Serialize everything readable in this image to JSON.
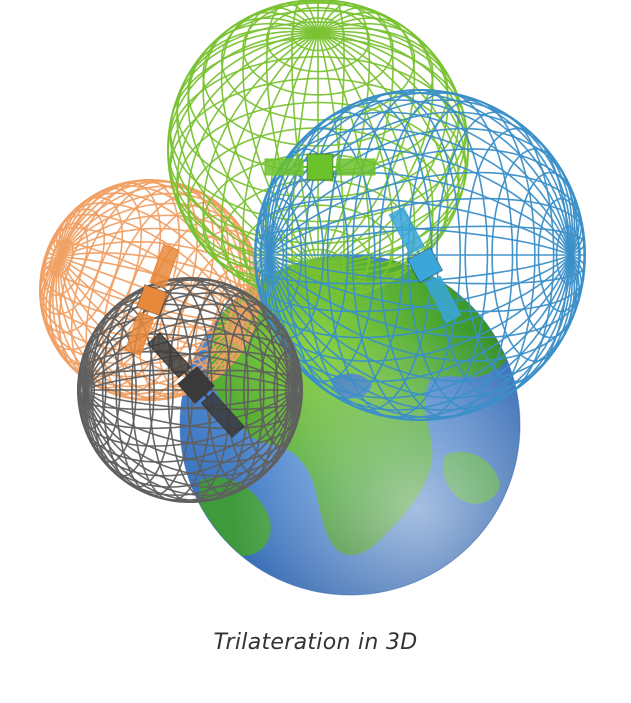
{
  "caption": "Trilateration in 3D",
  "colors": {
    "background": "#ffffff",
    "caption_text": "#333333",
    "ocean": "#3e78c4",
    "ocean_light": "#a9c8ee",
    "land": "#3d9a2c",
    "land_light": "#7ecb3a",
    "sphere_green": "#79c232",
    "sphere_blue": "#3b8fc8",
    "sphere_orange": "#f0a064",
    "sphere_gray": "#5f5f5f",
    "satellite_green": "#6cc22a",
    "satellite_blue": "#3aa6d9",
    "satellite_orange": "#e8883a",
    "satellite_gray": "#3a3a3a"
  },
  "icons": {
    "earth": "globe-icon",
    "satellite": "satellite-icon"
  }
}
